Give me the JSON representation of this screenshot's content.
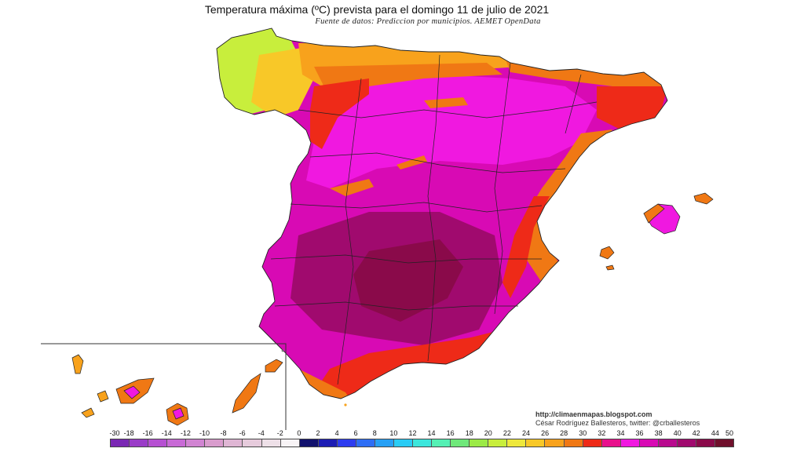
{
  "title": "Temperatura máxima (ºC) prevista para el domingo 11 de julio de 2021",
  "subtitle": "Fuente de datos: Prediccion por municipios. AEMET OpenData",
  "credits": {
    "url": "http://climaenmapas.blogspot.com",
    "author": "César Rodríguez Ballesteros, twitter: @crballesteros"
  },
  "map": {
    "region": "Spain",
    "inset": "Canary Islands",
    "variable": "maximum temperature forecast (°C)"
  },
  "legend": {
    "labels": [
      "-30",
      "-18",
      "-16",
      "-14",
      "-12",
      "-10",
      "-8",
      "-6",
      "-4",
      "-2",
      "0",
      "2",
      "4",
      "6",
      "8",
      "10",
      "12",
      "14",
      "16",
      "18",
      "20",
      "22",
      "24",
      "26",
      "28",
      "30",
      "32",
      "34",
      "36",
      "38",
      "40",
      "42",
      "44",
      "50"
    ],
    "colors": [
      "#7a28b4",
      "#9a3cc8",
      "#b650d2",
      "#c86ad6",
      "#d184d2",
      "#d99ccd",
      "#dfb6d4",
      "#e6cbdc",
      "#eee0e8",
      "#f8f4f6",
      "#12126e",
      "#1c1cb4",
      "#2d3cf0",
      "#2e6ef5",
      "#27a0f5",
      "#29ccf5",
      "#3ce6dc",
      "#54f0b4",
      "#6fe87a",
      "#9bea46",
      "#c8ee3c",
      "#eee83c",
      "#f8c828",
      "#f8a21c",
      "#f07814",
      "#ee2a18",
      "#e8108c",
      "#f018e0",
      "#d80ab4",
      "#b80a8e",
      "#a00a6e",
      "#8a0a4a",
      "#70102c"
    ]
  }
}
